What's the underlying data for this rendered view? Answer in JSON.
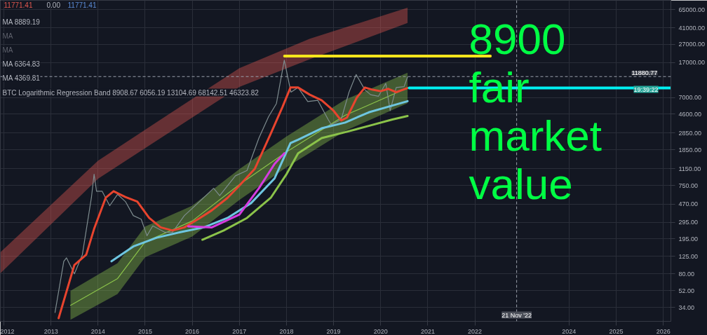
{
  "chart_data": {
    "type": "line",
    "xlim": [
      "2011-12-05",
      "2026-03-01"
    ],
    "xticks": [
      "2012",
      "2013",
      "2014",
      "2015",
      "2016",
      "2017",
      "2018",
      "2019",
      "2020",
      "2021",
      "2022",
      "2024",
      "2025",
      "2026"
    ],
    "ylim": [
      24,
      82000
    ],
    "yticks": [
      {
        "value": 34,
        "label": "34.00"
      },
      {
        "value": 52,
        "label": "52.00"
      },
      {
        "value": 80,
        "label": "80.00"
      },
      {
        "value": 125,
        "label": "125.00"
      },
      {
        "value": 195,
        "label": "195.00"
      },
      {
        "value": 295,
        "label": "295.00"
      },
      {
        "value": 470,
        "label": "470.00"
      },
      {
        "value": 750,
        "label": "750.00"
      },
      {
        "value": 1150,
        "label": "1150.00"
      },
      {
        "value": 1850,
        "label": "1850.00"
      },
      {
        "value": 2850,
        "label": "2850.00"
      },
      {
        "value": 4600,
        "label": "4600.00"
      },
      {
        "value": 7000,
        "label": "7000.00"
      },
      {
        "value": 17000,
        "label": "17000.00"
      },
      {
        "value": 27000,
        "label": "27000.00"
      },
      {
        "value": 41000,
        "label": "41000.00"
      },
      {
        "value": 65000,
        "label": "65000.00"
      }
    ],
    "log": true,
    "grid": true,
    "series": [
      {
        "color": "#e0574f",
        "x": [
          "2011-12-05",
          "2014-01-01",
          "2015-07-01",
          "2017-01-01",
          "2018-07-01",
          "2020-07-28"
        ],
        "values": [
          null,
          null,
          null,
          null,
          null,
          null
        ],
        "lower": [
          81,
          893,
          2840,
          9150,
          18400,
          46324
        ],
        "upper": [
          138,
          1410,
          4550,
          14700,
          31000,
          68143
        ]
      },
      {
        "color": "#8bc34a",
        "x": [
          "2013-06-01",
          "2014-06-01",
          "2015-01-01",
          "2016-01-01",
          "2017-01-01",
          "2018-01-01",
          "2019-04-01",
          "2020-07-28"
        ],
        "values": [
          36,
          71,
          180,
          305,
          770,
          1760,
          4450,
          8909
        ],
        "lower": [
          25,
          48,
          122,
          206,
          520,
          1190,
          3000,
          6056
        ],
        "upper": [
          52,
          105,
          265,
          450,
          1140,
          2600,
          6600,
          13105
        ]
      },
      {
        "color": "#7e8c8f",
        "x": [
          "2013-02-01",
          "2013-04-10",
          "2013-05-01",
          "2013-07-01",
          "2013-09-01",
          "2013-11-10",
          "2013-12-01",
          "2013-12-20",
          "2014-02-01",
          "2014-04-01",
          "2014-06-01",
          "2014-08-01",
          "2014-10-01",
          "2014-12-01",
          "2015-01-15",
          "2015-03-01",
          "2015-06-01",
          "2015-08-01",
          "2015-11-01",
          "2016-01-01",
          "2016-06-15",
          "2016-08-01",
          "2016-12-01",
          "2017-03-01",
          "2017-06-01",
          "2017-08-15",
          "2017-10-15",
          "2017-12-15",
          "2018-01-15",
          "2018-02-05",
          "2018-04-01",
          "2018-06-15",
          "2018-09-01",
          "2018-11-20",
          "2018-12-15",
          "2019-03-01",
          "2019-05-01",
          "2019-06-25",
          "2019-09-01",
          "2019-10-15",
          "2019-12-15",
          "2020-02-10",
          "2020-03-15",
          "2020-05-01",
          "2020-07-01",
          "2020-07-28"
        ],
        "values": [
          30,
          110,
          120,
          80,
          130,
          550,
          1000,
          650,
          650,
          450,
          600,
          500,
          350,
          320,
          210,
          270,
          230,
          230,
          350,
          420,
          700,
          580,
          960,
          1100,
          2500,
          4300,
          6000,
          18000,
          11000,
          8000,
          9000,
          6300,
          6500,
          4000,
          3500,
          4000,
          8000,
          12500,
          8500,
          7500,
          7200,
          10000,
          5000,
          9000,
          9200,
          11771
        ]
      },
      {
        "color": "#e8442e",
        "x": [
          "2013-03-01",
          "2013-07-01",
          "2013-10-01",
          "2013-12-01",
          "2014-03-01",
          "2014-05-01",
          "2014-08-01",
          "2014-11-01",
          "2015-02-01",
          "2015-05-01",
          "2015-08-01",
          "2015-11-01",
          "2016-03-01",
          "2016-06-01",
          "2016-10-01",
          "2017-01-01",
          "2017-05-01",
          "2017-09-01",
          "2017-12-01",
          "2018-02-01",
          "2018-04-01",
          "2018-07-01",
          "2018-10-01",
          "2019-01-01",
          "2019-03-01",
          "2019-04-15",
          "2019-07-01",
          "2019-09-01",
          "2019-11-01",
          "2020-01-01",
          "2020-03-01",
          "2020-05-01",
          "2020-07-28"
        ],
        "values": [
          26,
          100,
          130,
          250,
          550,
          650,
          560,
          500,
          330,
          260,
          240,
          260,
          330,
          400,
          550,
          750,
          1150,
          2800,
          5500,
          9000,
          9000,
          7500,
          6500,
          5000,
          3900,
          4200,
          7000,
          9000,
          8500,
          8200,
          8700,
          8000,
          8889
        ]
      },
      {
        "color": "#6ec6e0",
        "x": [
          "2014-04-15",
          "2014-10-01",
          "2015-04-01",
          "2015-10-01",
          "2016-04-01",
          "2016-10-01",
          "2017-04-01",
          "2017-10-01",
          "2018-02-01",
          "2018-04-01",
          "2018-10-01",
          "2019-04-01",
          "2019-10-01",
          "2020-04-01",
          "2020-07-28"
        ],
        "values": [
          110,
          160,
          200,
          230,
          260,
          330,
          480,
          900,
          2200,
          2400,
          3200,
          3700,
          4800,
          5700,
          6365
        ]
      },
      {
        "color": "#8bc34a",
        "x": [
          "2016-03-20",
          "2016-09-01",
          "2017-03-01",
          "2017-09-01",
          "2018-01-01",
          "2018-04-01",
          "2018-10-01",
          "2019-04-01",
          "2019-10-01",
          "2020-04-01",
          "2020-07-28"
        ],
        "values": [
          190,
          240,
          330,
          550,
          1000,
          1700,
          2500,
          2900,
          3400,
          4000,
          4370
        ]
      },
      {
        "color": "#d63be0",
        "x": [
          "2015-12-01",
          "2016-06-01",
          "2017-01-01",
          "2017-06-01",
          "2017-10-01",
          "2017-12-15"
        ],
        "values": [
          267,
          260,
          360,
          700,
          1300,
          1700
        ]
      },
      {
        "color": "#f5e51c",
        "x": [
          "2017-12-17",
          "2022-05-01"
        ],
        "values": [
          20000,
          20000
        ]
      },
      {
        "color": "#00f0f0",
        "x": [
          "2020-08-10",
          "2026-03-01"
        ],
        "values": [
          8900,
          8900
        ]
      }
    ],
    "ref_lines": [
      {
        "axis": "y",
        "value": 11880.77,
        "label": "11880.77",
        "color": "#9aa0ab",
        "line_style": "dashed"
      },
      {
        "axis": "x",
        "value": "2022-11-21",
        "label": "21 Nov '22",
        "color": "#9aa0ab",
        "line_style": "dashed"
      }
    ],
    "annotations": [
      "11771.41",
      "0.00",
      "11771.41",
      "MA 8889.19",
      "MA",
      "MA",
      "MA 6364.83",
      "MA 4369.81",
      "BTC Logarithmic Regression Band 8908.67 6056.19 13104.69 68142.51 46323.82",
      "19:39:22",
      "8900 fair market value"
    ]
  }
}
